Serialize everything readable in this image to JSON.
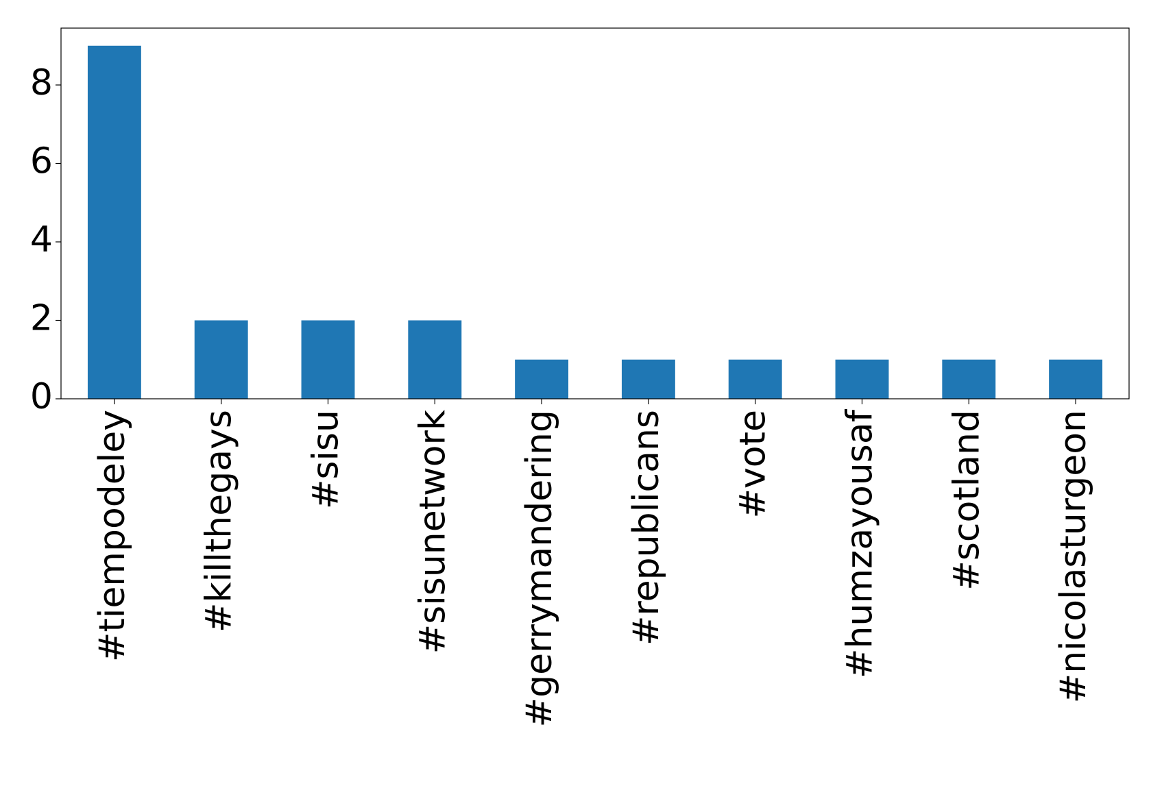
{
  "chart_data": {
    "type": "bar",
    "categories": [
      "#tiempodeley",
      "#killthegays",
      "#sisu",
      "#sisunetwork",
      "#gerrymandering",
      "#republicans",
      "#vote",
      "#humzayousaf",
      "#scotland",
      "#nicolasturgeon"
    ],
    "values": [
      9,
      2,
      2,
      2,
      1,
      1,
      1,
      1,
      1,
      1
    ],
    "color": "#1f77b4",
    "ylim": [
      0,
      9.45
    ],
    "yticks": [
      0,
      2,
      4,
      6,
      8
    ]
  }
}
